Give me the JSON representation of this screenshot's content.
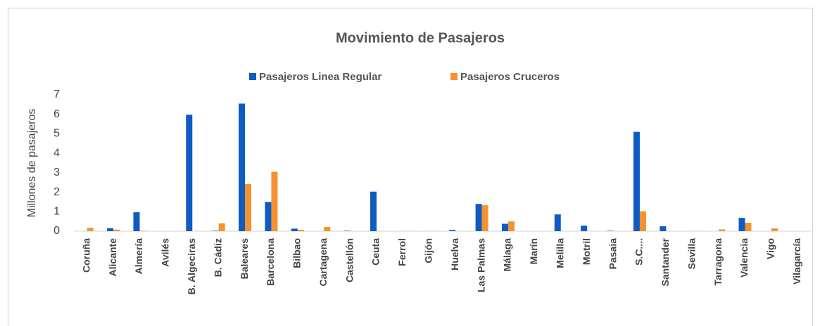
{
  "chart_data": {
    "type": "bar",
    "title": "Movimiento de Pasajeros",
    "y_label": "Millones de pasajeros",
    "categories": [
      "Coruña",
      "Alicante",
      "Almería",
      "Avilés",
      "B. Algeciras",
      "B. Cádiz",
      "Baleares",
      "Barcelona",
      "Bilbao",
      "Cartagena",
      "Castellón",
      "Ceuta",
      "Ferrol",
      "Gijón",
      "Huelva",
      "Las Palmas",
      "Málaga",
      "Marín",
      "Melilla",
      "Motril",
      "Pasaia",
      "S.C....",
      "Santander",
      "Sevilla",
      "Tarragona",
      "Valencia",
      "Vigo",
      "Vilagarcía"
    ],
    "series": [
      {
        "name": "Pasajeros Linea Regular",
        "color": "#0e5bc4",
        "values": [
          0,
          0.15,
          0.97,
          0,
          5.98,
          0.02,
          6.55,
          1.5,
          0.13,
          0,
          0.02,
          2.03,
          0,
          0,
          0.06,
          1.4,
          0.38,
          0,
          0.86,
          0.28,
          0.02,
          5.1,
          0.25,
          0,
          0,
          0.68,
          0,
          0
        ]
      },
      {
        "name": "Pasajeros Cruceros",
        "color": "#f5922f",
        "values": [
          0.17,
          0.08,
          0.02,
          0,
          0,
          0.4,
          2.42,
          3.05,
          0.07,
          0.22,
          0,
          0,
          0.01,
          0.01,
          0,
          1.33,
          0.5,
          0,
          0,
          0,
          0,
          1.02,
          0,
          0.01,
          0.09,
          0.43,
          0.14,
          0
        ]
      }
    ],
    "ylim": [
      0,
      7
    ],
    "yticks": [
      0,
      1,
      2,
      3,
      4,
      5,
      6,
      7
    ],
    "grid": false,
    "legend": "top"
  }
}
